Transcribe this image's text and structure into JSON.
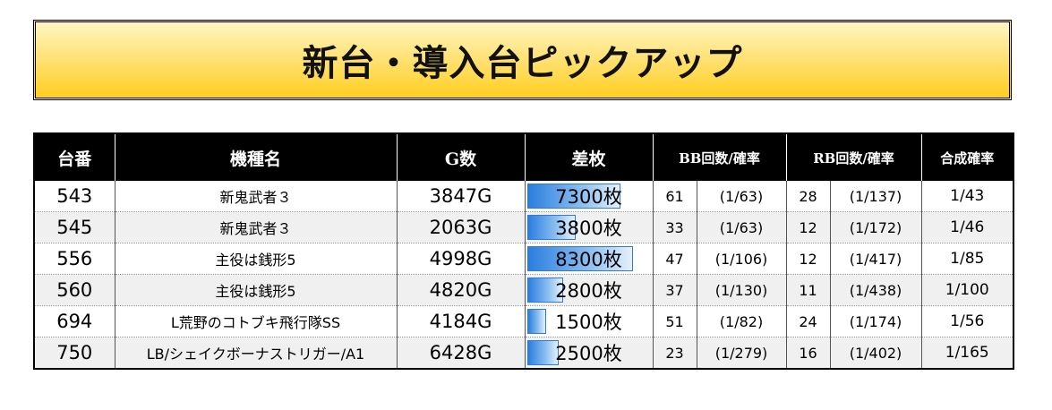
{
  "title": "新台・導入台ピックアップ",
  "columns": [
    "台番",
    "機種名",
    "G数",
    "差枚",
    "BB回数/確率",
    "RB回数/確率",
    "合成確率"
  ],
  "diff_scale_max": 8300,
  "rows": [
    {
      "no": "543",
      "name": "新鬼武者３",
      "games": "3847G",
      "diff": "7300枚",
      "diff_value": 7300,
      "bb_count": "61",
      "bb_rate": "(1/63)",
      "rb_count": "28",
      "rb_rate": "(1/137)",
      "combined": "1/43"
    },
    {
      "no": "545",
      "name": "新鬼武者３",
      "games": "2063G",
      "diff": "3800枚",
      "diff_value": 3800,
      "bb_count": "33",
      "bb_rate": "(1/63)",
      "rb_count": "12",
      "rb_rate": "(1/172)",
      "combined": "1/46"
    },
    {
      "no": "556",
      "name": "主役は銭形5",
      "games": "4998G",
      "diff": "8300枚",
      "diff_value": 8300,
      "bb_count": "47",
      "bb_rate": "(1/106)",
      "rb_count": "12",
      "rb_rate": "(1/417)",
      "combined": "1/85"
    },
    {
      "no": "560",
      "name": "主役は銭形5",
      "games": "4820G",
      "diff": "2800枚",
      "diff_value": 2800,
      "bb_count": "37",
      "bb_rate": "(1/130)",
      "rb_count": "11",
      "rb_rate": "(1/438)",
      "combined": "1/100"
    },
    {
      "no": "694",
      "name": "L荒野のコトブキ飛行隊SS",
      "games": "4184G",
      "diff": "1500枚",
      "diff_value": 1500,
      "bb_count": "51",
      "bb_rate": "(1/82)",
      "rb_count": "24",
      "rb_rate": "(1/174)",
      "combined": "1/56"
    },
    {
      "no": "750",
      "name": "LB/シェイクボーナストリガー/A1",
      "games": "6428G",
      "diff": "2500枚",
      "diff_value": 2500,
      "bb_count": "23",
      "bb_rate": "(1/279)",
      "rb_count": "16",
      "rb_rate": "(1/402)",
      "combined": "1/165"
    }
  ],
  "colors": {
    "header_bg": "#000000",
    "bar": "#2a7ee0",
    "banner": "#ffce20"
  }
}
